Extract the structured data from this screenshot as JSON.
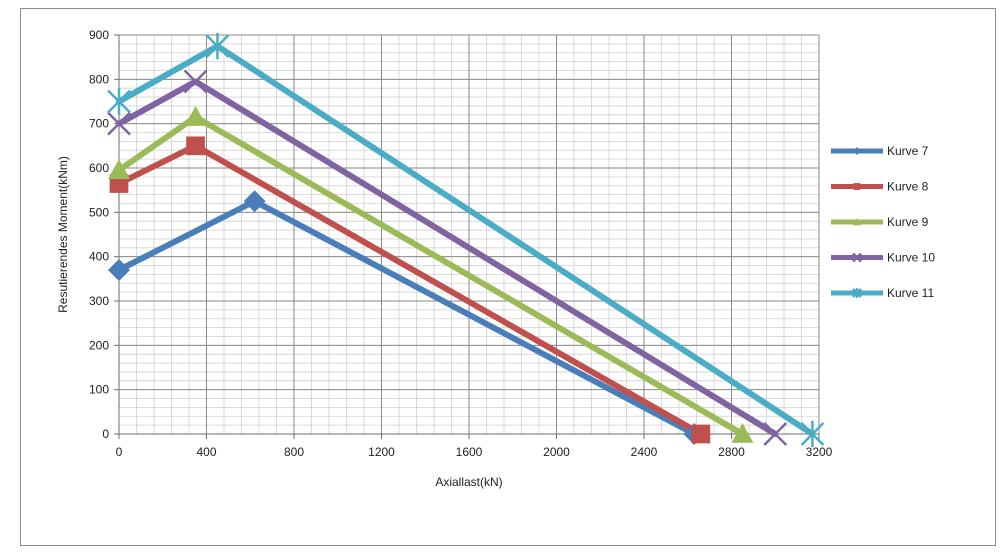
{
  "chart_data": {
    "type": "line",
    "title": "",
    "xlabel": "Axiallast(kN)",
    "ylabel": "Resutierendes Moment(kNm)",
    "xlim": [
      0,
      3200
    ],
    "ylim": [
      0,
      900
    ],
    "x_ticks": [
      0,
      400,
      800,
      1200,
      1600,
      2000,
      2400,
      2800,
      3200
    ],
    "y_ticks": [
      0,
      100,
      200,
      300,
      400,
      500,
      600,
      700,
      800,
      900
    ],
    "x_tick_labels": [
      "0",
      "400",
      "800",
      "1200",
      "1600",
      "2000",
      "2400",
      "2800",
      "3200"
    ],
    "y_tick_labels": [
      "0",
      "100",
      "200",
      "300",
      "400",
      "500",
      "600",
      "700",
      "800",
      "900"
    ],
    "grid": true,
    "minor_grid": true,
    "legend_position": "right",
    "series": [
      {
        "name": "Kurve 7",
        "color": "#4a7ebb",
        "marker": "diamond",
        "x": [
          0,
          620,
          2630
        ],
        "y": [
          370,
          525,
          0
        ]
      },
      {
        "name": "Kurve 8",
        "color": "#c0504d",
        "marker": "square",
        "x": [
          0,
          350,
          2660
        ],
        "y": [
          565,
          650,
          0
        ]
      },
      {
        "name": "Kurve 9",
        "color": "#9bbb59",
        "marker": "triangle",
        "x": [
          0,
          350,
          2850
        ],
        "y": [
          595,
          715,
          0
        ]
      },
      {
        "name": "Kurve 10",
        "color": "#8064a2",
        "marker": "x",
        "x": [
          0,
          350,
          3000
        ],
        "y": [
          700,
          795,
          0
        ]
      },
      {
        "name": "Kurve 11",
        "color": "#4bacc6",
        "marker": "star",
        "x": [
          0,
          450,
          3170
        ],
        "y": [
          750,
          875,
          0
        ]
      }
    ]
  }
}
